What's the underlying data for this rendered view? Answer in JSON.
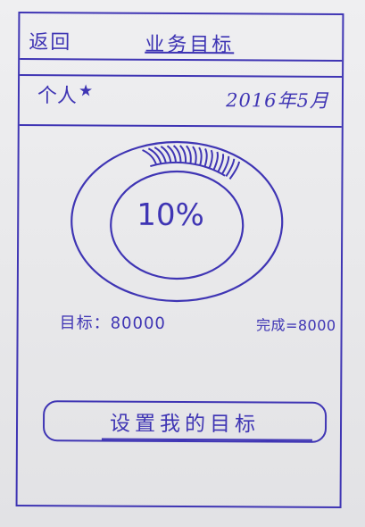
{
  "header": {
    "back_label": "返回",
    "title": "业务目标"
  },
  "subbar": {
    "person": "个人",
    "date": "2016年5月"
  },
  "progress": {
    "percent_label": "10%",
    "fraction": 0.1
  },
  "stats": {
    "target": "目标：80000",
    "done": "完成=8000"
  },
  "action": {
    "button_label": "设置我的目标"
  },
  "colors": {
    "ink": "#3f35b4",
    "paper": "#e9e9eb"
  }
}
